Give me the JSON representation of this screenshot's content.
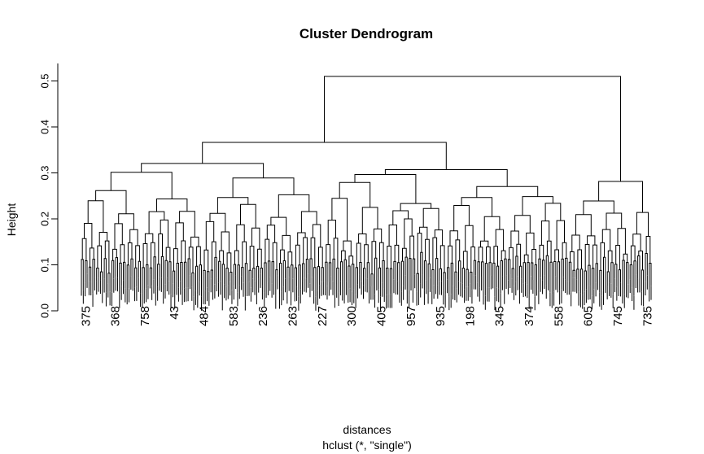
{
  "chart_data": {
    "type": "dendrogram",
    "title": "Cluster Dendrogram",
    "xlabel": "distances",
    "sub": "hclust (*, \"single\")",
    "ylabel": "Height",
    "ylim": [
      0,
      0.5
    ],
    "yticks": [
      "0.0",
      "0.1",
      "0.2",
      "0.3",
      "0.4",
      "0.5"
    ],
    "max_height": 0.51,
    "visible_leaf_labels": [
      "375",
      "368",
      "758",
      "43",
      "484",
      "583",
      "236",
      "263",
      "227",
      "300",
      "405",
      "957",
      "935",
      "198",
      "345",
      "374",
      "558",
      "605",
      "745",
      "735"
    ],
    "color": "#000000"
  }
}
